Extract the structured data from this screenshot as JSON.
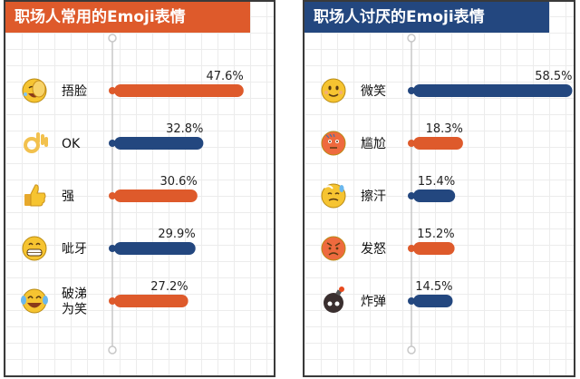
{
  "colors": {
    "orange": "#de5a2b",
    "blue": "#23477f",
    "axis": "#c8c8c8"
  },
  "chart_data": [
    {
      "type": "bar",
      "title": "职场人常用的Emoji表情",
      "title_color": "#de5a2b",
      "categories": [
        "捂脸",
        "OK",
        "强",
        "呲牙",
        "破涕为笑"
      ],
      "category_lines": [
        [
          "捂脸"
        ],
        [
          "OK"
        ],
        [
          "强"
        ],
        [
          "呲牙"
        ],
        [
          "破涕",
          "为笑"
        ]
      ],
      "icons": [
        "facepalm-emoji",
        "ok-hand-emoji",
        "thumbs-up-emoji",
        "grin-emoji",
        "tears-of-joy-emoji"
      ],
      "values": [
        47.6,
        32.8,
        30.6,
        29.9,
        27.2
      ],
      "value_labels": [
        "47.6%",
        "32.8%",
        "30.6%",
        "29.9%",
        "27.2%"
      ],
      "bar_colors": [
        "#de5a2b",
        "#23477f",
        "#de5a2b",
        "#23477f",
        "#de5a2b"
      ],
      "orientation": "horizontal",
      "grid": true
    },
    {
      "type": "bar",
      "title": "职场人讨厌的Emoji表情",
      "title_color": "#23477f",
      "categories": [
        "微笑",
        "尴尬",
        "擦汗",
        "发怒",
        "炸弹"
      ],
      "category_lines": [
        [
          "微笑"
        ],
        [
          "尴尬"
        ],
        [
          "擦汗"
        ],
        [
          "发怒"
        ],
        [
          "炸弹"
        ]
      ],
      "icons": [
        "smile-emoji",
        "awkward-emoji",
        "sweat-emoji",
        "angry-emoji",
        "bomb-emoji"
      ],
      "values": [
        58.5,
        18.3,
        15.4,
        15.2,
        14.5
      ],
      "value_labels": [
        "58.5%",
        "18.3%",
        "15.4%",
        "15.2%",
        "14.5%"
      ],
      "bar_colors": [
        "#23477f",
        "#de5a2b",
        "#23477f",
        "#de5a2b",
        "#23477f"
      ],
      "orientation": "horizontal",
      "grid": true
    }
  ]
}
